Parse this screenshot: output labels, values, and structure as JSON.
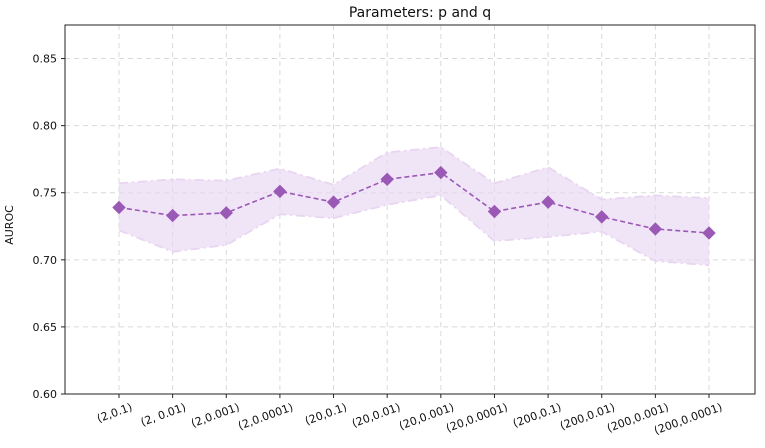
{
  "chart_data": {
    "type": "line",
    "title": "Parameters: p and q",
    "xlabel": "",
    "ylabel": "AUROC",
    "categories": [
      "(2,0.1)",
      "(2, 0.01)",
      "(2,0.001)",
      "(2,0.0001)",
      "(20,0.1)",
      "(20,0.01)",
      "(20,0.001)",
      "(20,0.0001)",
      "(200,0.1)",
      "(200,0.01)",
      "(200,0.001)",
      "(200,0.0001)"
    ],
    "series": [
      {
        "values": [
          0.739,
          0.733,
          0.735,
          0.751,
          0.743,
          0.76,
          0.765,
          0.736,
          0.743,
          0.732,
          0.723,
          0.72
        ],
        "upper": [
          0.757,
          0.76,
          0.759,
          0.768,
          0.756,
          0.78,
          0.784,
          0.757,
          0.769,
          0.745,
          0.748,
          0.746
        ],
        "lower": [
          0.722,
          0.706,
          0.711,
          0.734,
          0.731,
          0.741,
          0.748,
          0.714,
          0.717,
          0.721,
          0.699,
          0.696
        ],
        "color": "#9b59b6",
        "band_color": "#e8d5f2",
        "marker": "diamond",
        "line_style": "dashed"
      }
    ],
    "ylim": [
      0.6,
      0.875
    ],
    "yticks": [
      "0.60",
      "0.65",
      "0.70",
      "0.75",
      "0.80",
      "0.85"
    ],
    "grid": true,
    "legend": "none"
  }
}
